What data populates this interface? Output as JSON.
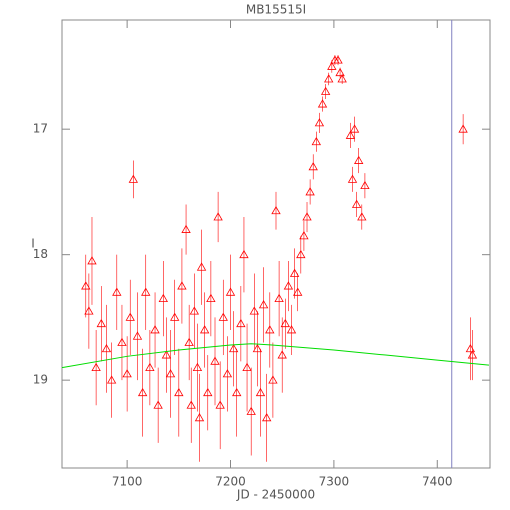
{
  "chart_data": {
    "type": "scatter",
    "title": "MB15515I",
    "x_label": "JD - 2450000",
    "y_label": "I",
    "xlim": [
      7037,
      7451
    ],
    "ylim": [
      19.7,
      16.13
    ],
    "xticks": [
      7100,
      7200,
      7300,
      7400
    ],
    "yticks": [
      17,
      18,
      19
    ],
    "frame_color": "#888888",
    "series": [
      {
        "color": "#ff0000",
        "marker": "triangle",
        "x": [
          7060,
          7063,
          7066,
          7070,
          7075,
          7080,
          7085,
          7090,
          7095,
          7100,
          7103,
          7106,
          7110,
          7115,
          7118,
          7122,
          7127,
          7130,
          7135,
          7138,
          7142,
          7146,
          7150,
          7153,
          7157,
          7160,
          7162,
          7165,
          7168,
          7170,
          7172,
          7175,
          7178,
          7181,
          7185,
          7188,
          7190,
          7193,
          7197,
          7200,
          7203,
          7206,
          7210,
          7213,
          7216,
          7220,
          7223,
          7226,
          7229,
          7232,
          7235,
          7238,
          7241,
          7244,
          7247,
          7250,
          7253,
          7256,
          7259,
          7262,
          7265,
          7268,
          7271,
          7274,
          7277,
          7280,
          7283,
          7286,
          7289,
          7292,
          7295,
          7298,
          7301,
          7304,
          7306,
          7308,
          7316,
          7318,
          7320,
          7322,
          7324,
          7327,
          7330,
          7425,
          7432,
          7434
        ],
        "values": [
          18.25,
          18.45,
          18.05,
          18.9,
          18.55,
          18.75,
          19.0,
          18.3,
          18.7,
          18.95,
          18.5,
          17.4,
          18.65,
          19.1,
          18.3,
          18.9,
          18.6,
          19.2,
          18.35,
          18.8,
          18.95,
          18.5,
          19.1,
          18.25,
          17.8,
          18.7,
          19.2,
          18.45,
          18.9,
          19.3,
          18.1,
          18.6,
          19.1,
          18.35,
          18.85,
          17.7,
          19.2,
          18.5,
          18.95,
          18.3,
          18.75,
          19.1,
          18.55,
          18.0,
          18.9,
          19.25,
          18.45,
          18.75,
          19.1,
          18.4,
          19.3,
          18.6,
          19.0,
          17.65,
          18.35,
          18.8,
          18.55,
          18.25,
          18.6,
          18.15,
          18.3,
          18.0,
          17.85,
          17.7,
          17.5,
          17.3,
          17.1,
          16.95,
          16.8,
          16.7,
          16.6,
          16.5,
          16.45,
          16.45,
          16.55,
          16.6,
          17.05,
          17.4,
          17.0,
          17.6,
          17.25,
          17.7,
          17.45,
          17.0,
          18.75,
          18.8
        ],
        "errors": [
          0.25,
          0.3,
          0.35,
          0.3,
          0.3,
          0.35,
          0.3,
          0.3,
          0.3,
          0.3,
          0.3,
          0.15,
          0.35,
          0.35,
          0.3,
          0.3,
          0.3,
          0.3,
          0.3,
          0.3,
          0.35,
          0.3,
          0.35,
          0.3,
          0.2,
          0.3,
          0.3,
          0.3,
          0.35,
          0.35,
          0.3,
          0.3,
          0.3,
          0.3,
          0.35,
          0.2,
          0.35,
          0.3,
          0.3,
          0.3,
          0.3,
          0.35,
          0.3,
          0.3,
          0.35,
          0.35,
          0.3,
          0.3,
          0.35,
          0.3,
          0.35,
          0.3,
          0.3,
          0.15,
          0.3,
          0.3,
          0.2,
          0.2,
          0.2,
          0.2,
          0.15,
          0.15,
          0.12,
          0.12,
          0.1,
          0.1,
          0.08,
          0.08,
          0.06,
          0.06,
          0.05,
          0.05,
          0.04,
          0.04,
          0.04,
          0.04,
          0.1,
          0.1,
          0.1,
          0.1,
          0.1,
          0.1,
          0.1,
          0.12,
          0.25,
          0.2
        ]
      }
    ],
    "model": {
      "color": "#00dd00",
      "x": [
        7037,
        7100,
        7150,
        7200,
        7220,
        7240,
        7300,
        7350,
        7400,
        7450
      ],
      "values": [
        18.9,
        18.81,
        18.76,
        18.72,
        18.71,
        18.72,
        18.76,
        18.8,
        18.84,
        18.88
      ]
    },
    "vline": {
      "x": 7414,
      "color": "#8080c0"
    }
  }
}
